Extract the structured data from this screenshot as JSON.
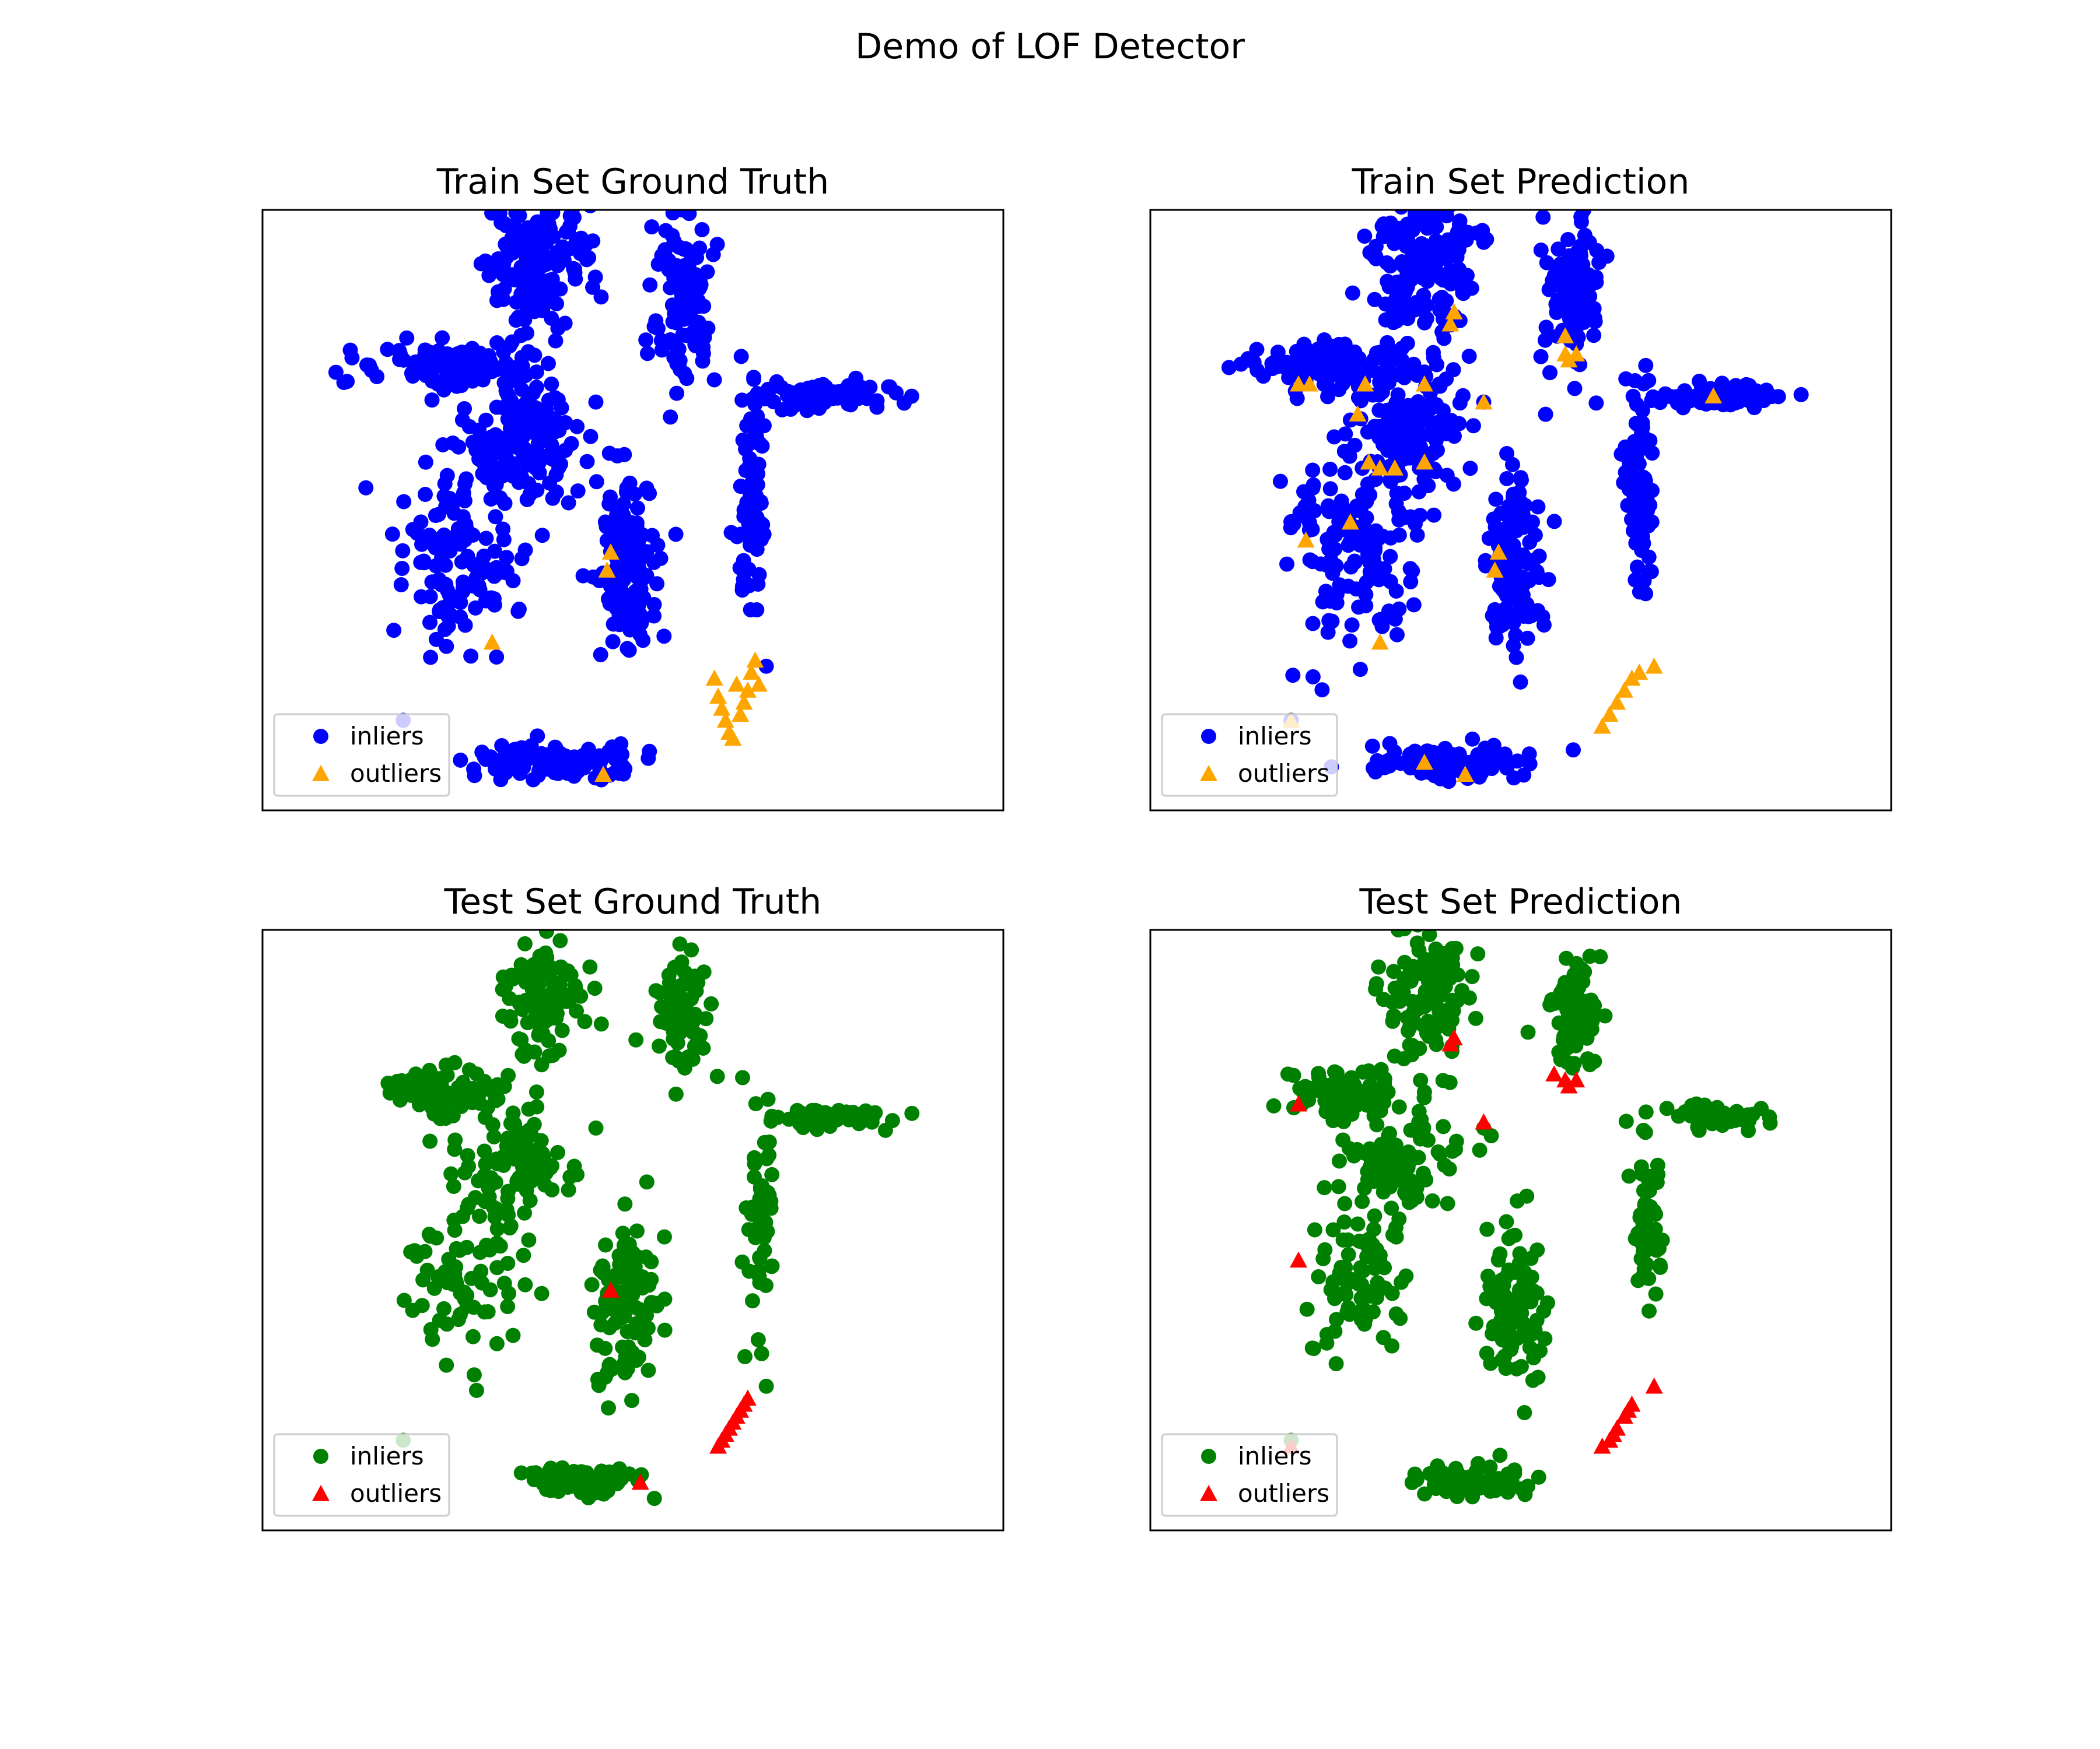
{
  "figure": {
    "title": "Demo of LOF Detector"
  },
  "chart_data": [
    {
      "type": "scatter",
      "title": "Train Set Ground Truth",
      "xlabel": "",
      "ylabel": "",
      "axes_visible": false,
      "legend": "lower-left",
      "palette": {
        "inliers": "#0000ff",
        "outliers": "#ffa500"
      },
      "series": [
        {
          "name": "inliers",
          "marker": "circle",
          "color": "#0000ff",
          "clusters": [
            {
              "x": 0.37,
              "y": 0.91,
              "sx": 0.035,
              "sy": 0.06,
              "n": 160
            },
            {
              "x": 0.57,
              "y": 0.86,
              "sx": 0.02,
              "sy": 0.07,
              "n": 110
            },
            {
              "x": 0.25,
              "y": 0.74,
              "sx": 0.055,
              "sy": 0.02,
              "n": 120
            },
            {
              "x": 0.35,
              "y": 0.62,
              "sx": 0.035,
              "sy": 0.06,
              "n": 130
            },
            {
              "x": 0.76,
              "y": 0.69,
              "sx": 0.045,
              "sy": 0.01,
              "n": 80
            },
            {
              "x": 0.66,
              "y": 0.52,
              "sx": 0.01,
              "sy": 0.09,
              "n": 80
            },
            {
              "x": 0.27,
              "y": 0.43,
              "sx": 0.045,
              "sy": 0.08,
              "n": 130
            },
            {
              "x": 0.49,
              "y": 0.41,
              "sx": 0.02,
              "sy": 0.07,
              "n": 140
            },
            {
              "x": 0.4,
              "y": 0.08,
              "sx": 0.06,
              "sy": 0.015,
              "n": 110
            }
          ],
          "points": [
            [
              0.45,
              0.68
            ],
            [
              0.68,
              0.24
            ],
            [
              0.19,
              0.15
            ],
            [
              0.37,
              0.73
            ],
            [
              0.39,
              0.71
            ],
            [
              0.27,
              0.65
            ]
          ]
        },
        {
          "name": "outliers",
          "marker": "triangle",
          "color": "#ffa500",
          "points": [
            [
              0.47,
              0.43
            ],
            [
              0.465,
              0.4
            ],
            [
              0.31,
              0.28
            ],
            [
              0.46,
              0.06
            ],
            [
              0.61,
              0.22
            ],
            [
              0.615,
              0.19
            ],
            [
              0.62,
              0.17
            ],
            [
              0.625,
              0.15
            ],
            [
              0.63,
              0.13
            ],
            [
              0.635,
              0.12
            ],
            [
              0.64,
              0.21
            ],
            [
              0.645,
              0.16
            ],
            [
              0.65,
              0.18
            ],
            [
              0.655,
              0.2
            ],
            [
              0.66,
              0.23
            ],
            [
              0.665,
              0.25
            ],
            [
              0.67,
              0.21
            ]
          ]
        }
      ]
    },
    {
      "type": "scatter",
      "title": "Train Set Prediction",
      "xlabel": "",
      "ylabel": "",
      "axes_visible": false,
      "legend": "lower-left",
      "palette": {
        "inliers": "#0000ff",
        "outliers": "#ffa500"
      },
      "series": [
        {
          "name": "inliers",
          "marker": "circle",
          "color": "#0000ff",
          "clusters": [
            {
              "x": 0.37,
              "y": 0.91,
              "sx": 0.035,
              "sy": 0.06,
              "n": 160
            },
            {
              "x": 0.57,
              "y": 0.86,
              "sx": 0.02,
              "sy": 0.07,
              "n": 110
            },
            {
              "x": 0.25,
              "y": 0.74,
              "sx": 0.055,
              "sy": 0.02,
              "n": 120
            },
            {
              "x": 0.35,
              "y": 0.62,
              "sx": 0.035,
              "sy": 0.06,
              "n": 130
            },
            {
              "x": 0.76,
              "y": 0.69,
              "sx": 0.045,
              "sy": 0.01,
              "n": 80
            },
            {
              "x": 0.66,
              "y": 0.52,
              "sx": 0.01,
              "sy": 0.09,
              "n": 80
            },
            {
              "x": 0.27,
              "y": 0.43,
              "sx": 0.045,
              "sy": 0.08,
              "n": 130
            },
            {
              "x": 0.49,
              "y": 0.41,
              "sx": 0.02,
              "sy": 0.07,
              "n": 140
            },
            {
              "x": 0.4,
              "y": 0.08,
              "sx": 0.06,
              "sy": 0.015,
              "n": 110
            }
          ],
          "points": [
            [
              0.45,
              0.68
            ],
            [
              0.19,
              0.15
            ],
            [
              0.37,
              0.73
            ],
            [
              0.39,
              0.71
            ],
            [
              0.27,
              0.65
            ]
          ]
        },
        {
          "name": "outliers",
          "marker": "triangle",
          "color": "#ffa500",
          "points": [
            [
              0.405,
              0.81
            ],
            [
              0.41,
              0.83
            ],
            [
              0.56,
              0.79
            ],
            [
              0.56,
              0.76
            ],
            [
              0.575,
              0.76
            ],
            [
              0.565,
              0.75
            ],
            [
              0.215,
              0.71
            ],
            [
              0.2,
              0.71
            ],
            [
              0.29,
              0.71
            ],
            [
              0.37,
              0.71
            ],
            [
              0.45,
              0.68
            ],
            [
              0.28,
              0.66
            ],
            [
              0.76,
              0.69
            ],
            [
              0.31,
              0.57
            ],
            [
              0.33,
              0.57
            ],
            [
              0.37,
              0.58
            ],
            [
              0.295,
              0.58
            ],
            [
              0.27,
              0.48
            ],
            [
              0.21,
              0.45
            ],
            [
              0.47,
              0.43
            ],
            [
              0.465,
              0.4
            ],
            [
              0.31,
              0.28
            ],
            [
              0.37,
              0.08
            ],
            [
              0.425,
              0.06
            ],
            [
              0.19,
              0.15
            ],
            [
              0.61,
              0.14
            ],
            [
              0.62,
              0.16
            ],
            [
              0.63,
              0.18
            ],
            [
              0.64,
              0.2
            ],
            [
              0.65,
              0.22
            ],
            [
              0.66,
              0.23
            ],
            [
              0.68,
              0.24
            ]
          ]
        }
      ]
    },
    {
      "type": "scatter",
      "title": "Test Set Ground Truth",
      "xlabel": "",
      "ylabel": "",
      "axes_visible": false,
      "legend": "lower-left",
      "palette": {
        "inliers": "#008000",
        "outliers": "#ff0000"
      },
      "series": [
        {
          "name": "inliers",
          "marker": "circle",
          "color": "#008000",
          "clusters": [
            {
              "x": 0.38,
              "y": 0.89,
              "sx": 0.03,
              "sy": 0.06,
              "n": 110
            },
            {
              "x": 0.57,
              "y": 0.86,
              "sx": 0.018,
              "sy": 0.05,
              "n": 70
            },
            {
              "x": 0.25,
              "y": 0.73,
              "sx": 0.04,
              "sy": 0.02,
              "n": 80
            },
            {
              "x": 0.34,
              "y": 0.61,
              "sx": 0.035,
              "sy": 0.04,
              "n": 90
            },
            {
              "x": 0.77,
              "y": 0.69,
              "sx": 0.04,
              "sy": 0.01,
              "n": 50
            },
            {
              "x": 0.67,
              "y": 0.52,
              "sx": 0.01,
              "sy": 0.08,
              "n": 50
            },
            {
              "x": 0.27,
              "y": 0.42,
              "sx": 0.04,
              "sy": 0.08,
              "n": 80
            },
            {
              "x": 0.49,
              "y": 0.37,
              "sx": 0.02,
              "sy": 0.07,
              "n": 100
            },
            {
              "x": 0.44,
              "y": 0.08,
              "sx": 0.04,
              "sy": 0.012,
              "n": 70
            }
          ],
          "points": [
            [
              0.45,
              0.67
            ],
            [
              0.68,
              0.24
            ],
            [
              0.19,
              0.15
            ],
            [
              0.37,
              0.73
            ],
            [
              0.26,
              0.65
            ],
            [
              0.57,
              0.77
            ]
          ]
        },
        {
          "name": "outliers",
          "marker": "triangle",
          "color": "#ff0000",
          "points": [
            [
              0.47,
              0.4
            ],
            [
              0.51,
              0.08
            ],
            [
              0.615,
              0.14
            ],
            [
              0.62,
              0.15
            ],
            [
              0.625,
              0.16
            ],
            [
              0.63,
              0.17
            ],
            [
              0.635,
              0.18
            ],
            [
              0.64,
              0.19
            ],
            [
              0.645,
              0.2
            ],
            [
              0.65,
              0.21
            ],
            [
              0.655,
              0.22
            ]
          ]
        }
      ]
    },
    {
      "type": "scatter",
      "title": "Test Set Prediction",
      "xlabel": "",
      "ylabel": "",
      "axes_visible": false,
      "legend": "lower-left",
      "palette": {
        "inliers": "#008000",
        "outliers": "#ff0000"
      },
      "series": [
        {
          "name": "inliers",
          "marker": "circle",
          "color": "#008000",
          "clusters": [
            {
              "x": 0.38,
              "y": 0.89,
              "sx": 0.03,
              "sy": 0.06,
              "n": 110
            },
            {
              "x": 0.57,
              "y": 0.86,
              "sx": 0.018,
              "sy": 0.05,
              "n": 70
            },
            {
              "x": 0.25,
              "y": 0.73,
              "sx": 0.04,
              "sy": 0.02,
              "n": 80
            },
            {
              "x": 0.34,
              "y": 0.61,
              "sx": 0.035,
              "sy": 0.04,
              "n": 90
            },
            {
              "x": 0.77,
              "y": 0.69,
              "sx": 0.04,
              "sy": 0.01,
              "n": 50
            },
            {
              "x": 0.67,
              "y": 0.52,
              "sx": 0.01,
              "sy": 0.08,
              "n": 50
            },
            {
              "x": 0.27,
              "y": 0.42,
              "sx": 0.04,
              "sy": 0.08,
              "n": 80
            },
            {
              "x": 0.49,
              "y": 0.37,
              "sx": 0.02,
              "sy": 0.07,
              "n": 100
            },
            {
              "x": 0.44,
              "y": 0.08,
              "sx": 0.04,
              "sy": 0.012,
              "n": 70
            }
          ],
          "points": [
            [
              0.45,
              0.67
            ],
            [
              0.19,
              0.15
            ],
            [
              0.37,
              0.73
            ],
            [
              0.26,
              0.65
            ],
            [
              0.57,
              0.77
            ]
          ]
        },
        {
          "name": "outliers",
          "marker": "triangle",
          "color": "#ff0000",
          "points": [
            [
              0.41,
              0.82
            ],
            [
              0.405,
              0.81
            ],
            [
              0.545,
              0.76
            ],
            [
              0.56,
              0.75
            ],
            [
              0.575,
              0.75
            ],
            [
              0.565,
              0.74
            ],
            [
              0.2,
              0.71
            ],
            [
              0.45,
              0.68
            ],
            [
              0.2,
              0.45
            ],
            [
              0.19,
              0.14
            ],
            [
              0.61,
              0.14
            ],
            [
              0.62,
              0.15
            ],
            [
              0.625,
              0.16
            ],
            [
              0.63,
              0.17
            ],
            [
              0.64,
              0.19
            ],
            [
              0.645,
              0.2
            ],
            [
              0.65,
              0.21
            ],
            [
              0.68,
              0.24
            ]
          ]
        }
      ]
    }
  ]
}
